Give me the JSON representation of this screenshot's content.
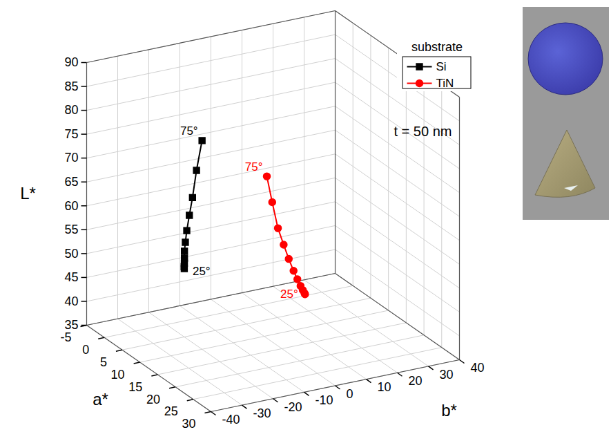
{
  "chart_data": {
    "type": "line3d",
    "x_label": "a*",
    "y_label": "b*",
    "z_label": "L*",
    "xlim": [
      -5,
      30
    ],
    "xticks": [
      -5,
      0,
      5,
      10,
      15,
      20,
      25,
      30
    ],
    "ylim": [
      -40,
      40
    ],
    "yticks": [
      -40,
      -30,
      -20,
      -10,
      0,
      10,
      20,
      30,
      40
    ],
    "zlim": [
      35,
      90
    ],
    "zticks": [
      35,
      40,
      45,
      50,
      55,
      60,
      65,
      70,
      75,
      80,
      85,
      90
    ],
    "grid": true,
    "legend": "top-right",
    "legend_title": "substrate",
    "annotations": [
      "t = 50 nm"
    ],
    "series": [
      {
        "name": "Si",
        "color": "#000000",
        "marker": "square",
        "line_style": "solid",
        "x": [
          12,
          11.8,
          11.5,
          11,
          10.3,
          9.5,
          8.5,
          7.3,
          6,
          4.5,
          3
        ],
        "y": [
          -28,
          -27.8,
          -27.4,
          -26.8,
          -26,
          -24.8,
          -23.2,
          -21,
          -18.5,
          -15.5,
          -12
        ],
        "z": [
          54,
          54.3,
          54.8,
          55.5,
          56.5,
          57.8,
          59.5,
          61.8,
          64.5,
          69,
          74
        ],
        "point_labels": [
          "25°",
          null,
          null,
          null,
          null,
          null,
          null,
          null,
          null,
          null,
          "75°"
        ]
      },
      {
        "name": "TiN",
        "color": "#ff0000",
        "marker": "circle",
        "line_style": "solid",
        "x": [
          4,
          4,
          3.9,
          3.8,
          3.6,
          3.4,
          3.1,
          2.8,
          2.5,
          2.2,
          2
        ],
        "y": [
          20,
          19.8,
          19.4,
          18.8,
          18,
          17,
          15.8,
          14.5,
          13,
          11.5,
          10
        ],
        "z": [
          38,
          38.3,
          38.9,
          39.8,
          41.2,
          43,
          45.5,
          48.5,
          52,
          57.5,
          63
        ],
        "point_labels": [
          "25°",
          null,
          null,
          null,
          null,
          null,
          null,
          null,
          null,
          null,
          "75°"
        ]
      }
    ]
  }
}
